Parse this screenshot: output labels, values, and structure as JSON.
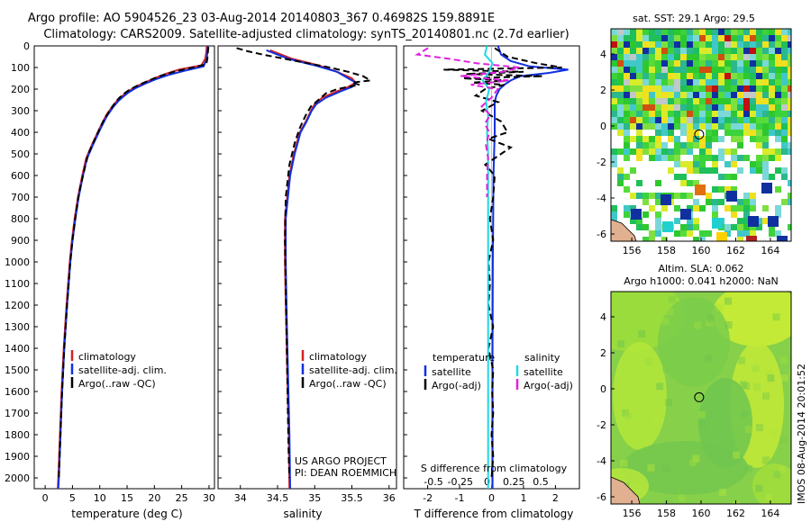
{
  "header": {
    "line1": "Argo profile: AO 5904526_23 03-Aug-2014 20140803_367 0.46982S 159.8891E",
    "line2": "Climatology: CARS2009. Satellite-adjusted climatology: synTS_20140801.nc (2.7d earlier)"
  },
  "colors": {
    "climatology": "#d62020",
    "satellite": "#1030e0",
    "argo": "#000000",
    "sal_satellite": "#20d8e0",
    "sal_argo": "#e020e0"
  },
  "chart_data": [
    {
      "type": "line",
      "id": "temperature",
      "xlabel": "temperature (deg C)",
      "ylabel": "",
      "xlim": [
        -2,
        31
      ],
      "ylim": [
        2050,
        0
      ],
      "xticks": [
        0,
        5,
        10,
        15,
        20,
        25,
        30
      ],
      "yticks": [
        0,
        100,
        200,
        300,
        400,
        500,
        600,
        700,
        800,
        900,
        1000,
        1100,
        1200,
        1300,
        1400,
        1500,
        1600,
        1700,
        1800,
        1900,
        2000
      ],
      "series": [
        {
          "name": "climatology",
          "color": "#d62020",
          "dash": "",
          "depth": [
            0,
            30,
            60,
            90,
            110,
            130,
            150,
            170,
            190,
            210,
            230,
            250,
            280,
            320,
            380,
            450,
            520,
            600,
            700,
            800,
            900,
            1000,
            1200,
            1400,
            1600,
            1800,
            2000,
            2050
          ],
          "values": [
            29.6,
            29.5,
            29.3,
            28.6,
            24.5,
            22,
            20,
            18.2,
            16.5,
            15.2,
            14.2,
            13.3,
            12.3,
            11.2,
            10,
            8.7,
            7.5,
            6.8,
            6,
            5.4,
            4.9,
            4.5,
            3.9,
            3.4,
            3,
            2.7,
            2.4,
            2.3
          ]
        },
        {
          "name": "satellite-adj. clim.",
          "color": "#1030e0",
          "dash": "",
          "depth": [
            0,
            30,
            60,
            95,
            115,
            135,
            155,
            175,
            195,
            215,
            235,
            255,
            285,
            325,
            385,
            455,
            525,
            605,
            705,
            805,
            905,
            1005,
            1205,
            1405,
            1605,
            1805,
            2005,
            2050
          ],
          "values": [
            29.8,
            29.7,
            29.6,
            29.0,
            25.5,
            22.5,
            20.2,
            18.3,
            16.6,
            15.3,
            14.3,
            13.4,
            12.4,
            11.3,
            10.1,
            8.8,
            7.6,
            6.9,
            6.1,
            5.5,
            5.0,
            4.6,
            4.0,
            3.5,
            3.1,
            2.8,
            2.5,
            2.4
          ]
        },
        {
          "name": "Argo(..raw -QC)",
          "color": "#000000",
          "dash": "7,4",
          "depth": [
            5,
            30,
            60,
            85,
            100,
            120,
            140,
            160,
            180,
            200,
            220,
            240,
            260,
            300,
            350,
            420,
            500,
            580,
            680,
            780,
            900,
            1000,
            1200,
            1400,
            1600,
            1800,
            2000
          ],
          "values": [
            29.9,
            29.8,
            29.7,
            29.5,
            27,
            23.5,
            21,
            19,
            17.2,
            15.6,
            14.5,
            13.6,
            12.9,
            11.8,
            10.6,
            9.3,
            7.9,
            7.1,
            6.2,
            5.6,
            5,
            4.6,
            4,
            3.5,
            3.1,
            2.8,
            2.5
          ]
        }
      ],
      "legend": [
        {
          "label": "climatology",
          "color": "#d62020"
        },
        {
          "label": "satellite-adj. clim.",
          "color": "#1030e0"
        },
        {
          "label": "Argo(..raw -QC)",
          "color": "#000000"
        }
      ]
    },
    {
      "type": "line",
      "id": "salinity",
      "xlabel": "salinity",
      "ylabel": "",
      "xlim": [
        33.7,
        36.1
      ],
      "ylim": [
        2050,
        0
      ],
      "xticks": [
        34,
        34.5,
        35,
        35.5,
        36
      ],
      "xticklabels": [
        "34",
        "34.5",
        "35",
        "35.5",
        "36"
      ],
      "series": [
        {
          "name": "climatology",
          "color": "#d62020",
          "dash": "",
          "depth": [
            20,
            60,
            90,
            120,
            150,
            170,
            190,
            210,
            240,
            270,
            300,
            350,
            400,
            500,
            600,
            800,
            1000,
            1200,
            1500,
            1800,
            2050
          ],
          "values": [
            34.4,
            34.7,
            35.05,
            35.3,
            35.5,
            35.55,
            35.45,
            35.3,
            35.1,
            35.0,
            34.95,
            34.88,
            34.8,
            34.72,
            34.66,
            34.6,
            34.6,
            34.61,
            34.63,
            34.65,
            34.66
          ]
        },
        {
          "name": "satellite-adj. clim.",
          "color": "#1030e0",
          "dash": "",
          "depth": [
            20,
            60,
            90,
            120,
            150,
            170,
            190,
            210,
            240,
            270,
            300,
            350,
            400,
            500,
            600,
            800,
            1000,
            1200,
            1500,
            1800,
            2050
          ],
          "values": [
            34.35,
            34.65,
            35.0,
            35.3,
            35.45,
            35.55,
            35.5,
            35.35,
            35.15,
            35.02,
            34.96,
            34.89,
            34.81,
            34.73,
            34.67,
            34.61,
            34.61,
            34.62,
            34.64,
            34.66,
            34.67
          ]
        },
        {
          "name": "Argo(..raw -QC)",
          "color": "#000000",
          "dash": "7,4",
          "depth": [
            10,
            25,
            40,
            60,
            80,
            100,
            120,
            140,
            160,
            170,
            180,
            200,
            220,
            250,
            280,
            320,
            380,
            450,
            550,
            700,
            900,
            1100,
            1300,
            1500,
            1700,
            1900,
            2000
          ],
          "values": [
            33.95,
            34.1,
            34.3,
            34.6,
            34.9,
            35.2,
            35.45,
            35.65,
            35.75,
            35.5,
            35.6,
            35.3,
            35.15,
            35.05,
            34.95,
            34.88,
            34.8,
            34.73,
            34.66,
            34.61,
            34.6,
            34.61,
            34.62,
            34.63,
            34.64,
            34.65,
            34.66
          ]
        }
      ],
      "legend": [
        {
          "label": "climatology",
          "color": "#d62020"
        },
        {
          "label": "satellite-adj. clim.",
          "color": "#1030e0"
        },
        {
          "label": "Argo(..raw -QC)",
          "color": "#000000"
        }
      ],
      "annotation": [
        "US ARGO PROJECT",
        "PI: DEAN ROEMMICH"
      ]
    },
    {
      "type": "line",
      "id": "difference",
      "xlabel": "T difference from climatology",
      "xlabel_top": "S difference from climatology",
      "xlim": [
        -2.75,
        2.75
      ],
      "ylim": [
        2050,
        0
      ],
      "xticks": [
        -2,
        -1,
        0,
        1,
        2
      ],
      "xticklabels": [
        "-2",
        "-1",
        "0",
        "1",
        "2"
      ],
      "sticks": [
        -0.5,
        -0.25,
        0,
        0.25,
        0.5
      ],
      "sticklabels": [
        "-0.5",
        "-0.25",
        "0",
        "0.25",
        "0.5"
      ],
      "series": [
        {
          "name": "T satellite",
          "color": "#1030e0",
          "dash": "",
          "unit": "T",
          "depth": [
            0,
            40,
            70,
            95,
            110,
            125,
            140,
            160,
            180,
            200,
            230,
            260,
            300,
            400,
            500,
            600,
            800,
            1000,
            1400,
            1800,
            2050
          ],
          "values": [
            0.2,
            0.3,
            0.6,
            1.2,
            2.4,
            1.8,
            0.9,
            0.6,
            0.4,
            0.25,
            0.15,
            0.1,
            0.1,
            0.1,
            0.08,
            0.06,
            0.05,
            0.04,
            0.03,
            0.03,
            0.03
          ]
        },
        {
          "name": "T Argo(-adj)",
          "color": "#000000",
          "dash": "7,4",
          "unit": "T",
          "depth": [
            10,
            50,
            80,
            100,
            110,
            120,
            130,
            140,
            150,
            160,
            170,
            180,
            200,
            230,
            260,
            300,
            350,
            400,
            430,
            470,
            500,
            550,
            600,
            700,
            800,
            900,
            1000,
            1100,
            1200,
            1300,
            1400,
            1500,
            1600,
            1700,
            1800,
            1900,
            2000
          ],
          "values": [
            0.1,
            0.5,
            1.4,
            2.2,
            -1.5,
            1.0,
            -0.8,
            1.6,
            -0.9,
            0.5,
            -0.6,
            0.4,
            -0.2,
            -0.5,
            0.2,
            -0.3,
            0.3,
            0.5,
            -0.1,
            0.6,
            0.3,
            -0.2,
            0.1,
            0.05,
            -0.05,
            0.05,
            -0.1,
            -0.05,
            -0.1,
            0.05,
            -0.1,
            0.05,
            0.02,
            0.05,
            0.0,
            0.05,
            0.0
          ]
        },
        {
          "name": "S satellite",
          "color": "#20d8e0",
          "dash": "",
          "unit": "S",
          "depth": [
            0,
            40,
            80,
            120,
            160,
            200,
            260,
            320,
            400,
            500,
            700,
            1000,
            1400,
            1800,
            2050
          ],
          "values": [
            0.0,
            -0.02,
            0.05,
            0.02,
            -0.04,
            0.02,
            -0.01,
            0.01,
            0.0,
            0.01,
            0.01,
            0.01,
            0.01,
            0.01,
            0.01
          ]
        },
        {
          "name": "S Argo(-adj)",
          "color": "#e020e0",
          "dash": "7,4",
          "unit": "S",
          "depth": [
            10,
            40,
            60,
            80,
            100,
            120,
            140,
            160,
            180,
            200,
            240,
            280,
            320,
            360,
            400,
            460,
            520,
            600,
            700
          ],
          "values": [
            -0.55,
            -0.65,
            -0.35,
            -0.1,
            0.3,
            0.15,
            -0.25,
            0.2,
            -0.15,
            0.1,
            0.04,
            -0.05,
            0.03,
            -0.02,
            0.02,
            -0.01,
            0.01,
            0.0,
            0.0
          ]
        }
      ],
      "legend_headers": [
        "temperature",
        "salinity"
      ],
      "legend": [
        {
          "label": "satellite",
          "color": "#1030e0",
          "col": 0
        },
        {
          "label": "Argo(-adj)",
          "color": "#000000",
          "col": 0
        },
        {
          "label": "satellite",
          "color": "#20d8e0",
          "col": 1
        },
        {
          "label": "Argo(-adj)",
          "color": "#e020e0",
          "col": 1
        }
      ]
    },
    {
      "type": "heatmap",
      "id": "sst_map",
      "title": "sat. SST: 29.1  Argo: 29.5",
      "xlim": [
        154.8,
        165.2
      ],
      "ylim": [
        -6.4,
        5.4
      ],
      "xticks": [
        156,
        158,
        160,
        162,
        164
      ],
      "yticks": [
        -6,
        -4,
        -2,
        0,
        2,
        4
      ],
      "marker": {
        "lon": 159.89,
        "lat": -0.47
      }
    },
    {
      "type": "heatmap",
      "id": "sla_map",
      "title": "Altim. SLA: 0.062",
      "subtitle": "Argo h1000: 0.041 h2000: NaN",
      "xlim": [
        154.8,
        165.2
      ],
      "ylim": [
        -6.4,
        5.4
      ],
      "xticks": [
        156,
        158,
        160,
        162,
        164
      ],
      "yticks": [
        -6,
        -4,
        -2,
        0,
        2,
        4
      ],
      "marker": {
        "lon": 159.89,
        "lat": -0.47
      }
    }
  ],
  "footer": {
    "stamp": "IMOS 08-Aug-2014 20:01:52"
  }
}
